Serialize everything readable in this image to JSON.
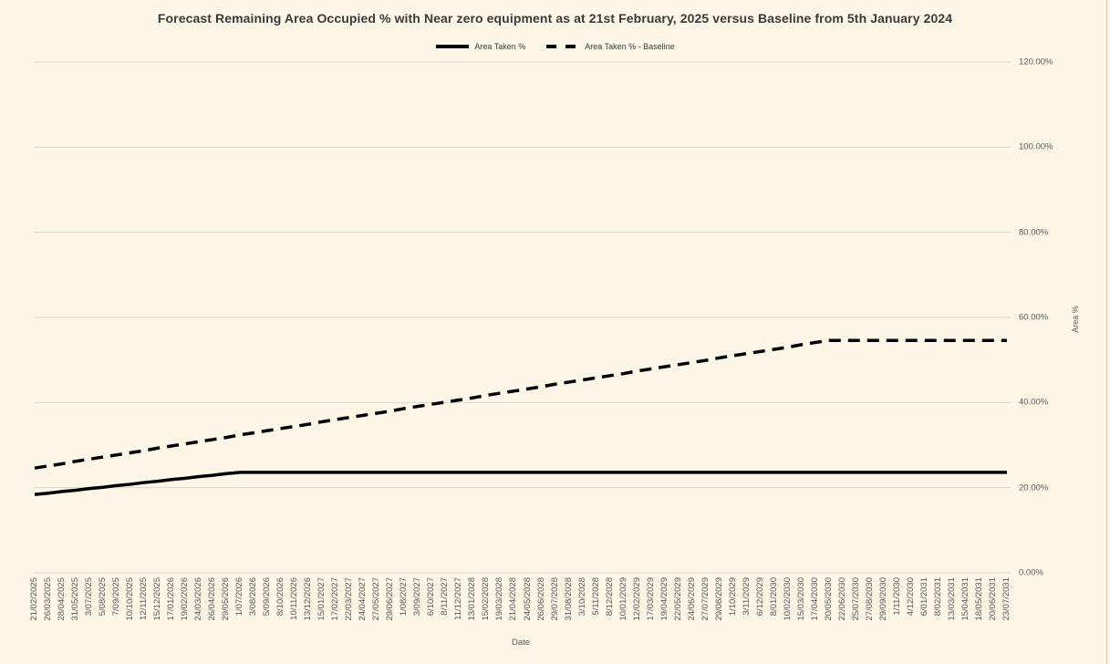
{
  "title": "Forecast Remaining Area Occupied % with Near zero equipment as at 21st February, 2025 versus Baseline from 5th January 2024",
  "legend": [
    {
      "label": "Area Taken %"
    },
    {
      "label": "Area Taken % - Baseline"
    }
  ],
  "axes": {
    "x_title": "Date",
    "y_title": "Area %",
    "y_ticks": [
      "0.00%",
      "20.00%",
      "40.00%",
      "60.00%",
      "80.00%",
      "100.00%",
      "120.00%"
    ]
  },
  "colors": {
    "background": "#fdf6e7",
    "line": "#000000",
    "gridline": "#dbd8cf",
    "tick_text": "#5a5856",
    "title_text": "#3a3a3a",
    "right_border": "#c7c5bf"
  },
  "chart_data": {
    "type": "line",
    "title": "Forecast Remaining Area Occupied % with Near zero equipment as at 21st February, 2025 versus Baseline from 5th January 2024",
    "xlabel": "Date",
    "ylabel": "Area %",
    "ylim": [
      0,
      120
    ],
    "grid": "horizontal",
    "legend_position": "top",
    "categories": [
      "21/02/2025",
      "26/03/2025",
      "28/04/2025",
      "31/05/2025",
      "3/07/2025",
      "5/08/2025",
      "7/09/2025",
      "10/10/2025",
      "12/11/2025",
      "15/12/2025",
      "17/01/2026",
      "19/02/2026",
      "24/03/2026",
      "26/04/2026",
      "29/05/2026",
      "1/07/2026",
      "3/08/2026",
      "5/09/2026",
      "8/10/2026",
      "10/11/2026",
      "13/12/2026",
      "15/01/2027",
      "17/02/2027",
      "22/03/2027",
      "24/04/2027",
      "27/05/2027",
      "29/06/2027",
      "1/08/2027",
      "3/09/2027",
      "6/10/2027",
      "8/11/2027",
      "11/12/2027",
      "13/01/2028",
      "15/02/2028",
      "19/03/2028",
      "21/04/2028",
      "24/05/2028",
      "26/06/2028",
      "29/07/2028",
      "31/08/2028",
      "3/10/2028",
      "5/11/2028",
      "8/12/2028",
      "10/01/2029",
      "12/02/2029",
      "17/03/2029",
      "19/04/2029",
      "22/05/2029",
      "24/06/2029",
      "27/07/2029",
      "29/08/2029",
      "1/10/2029",
      "3/11/2029",
      "6/12/2029",
      "8/01/2030",
      "10/02/2030",
      "15/03/2030",
      "17/04/2030",
      "20/05/2030",
      "22/06/2030",
      "25/07/2030",
      "27/08/2030",
      "29/09/2030",
      "1/11/2030",
      "4/12/2030",
      "6/01/2031",
      "8/02/2031",
      "13/03/2031",
      "15/04/2031",
      "18/05/2031",
      "20/06/2031",
      "23/07/2031"
    ],
    "series": [
      {
        "name": "Area Taken %",
        "style": "solid",
        "values": [
          18.4,
          18.7,
          19.1,
          19.4,
          19.8,
          20.1,
          20.5,
          20.8,
          21.2,
          21.5,
          21.9,
          22.2,
          22.6,
          22.9,
          23.3,
          23.6,
          23.6,
          23.6,
          23.6,
          23.6,
          23.6,
          23.6,
          23.6,
          23.6,
          23.6,
          23.6,
          23.6,
          23.6,
          23.6,
          23.6,
          23.6,
          23.6,
          23.6,
          23.6,
          23.6,
          23.6,
          23.6,
          23.6,
          23.6,
          23.6,
          23.6,
          23.6,
          23.6,
          23.6,
          23.6,
          23.6,
          23.6,
          23.6,
          23.6,
          23.6,
          23.6,
          23.6,
          23.6,
          23.6,
          23.6,
          23.6,
          23.6,
          23.6,
          23.6,
          23.6,
          23.6,
          23.6,
          23.6,
          23.6,
          23.6,
          23.6,
          23.6,
          23.6,
          23.6,
          23.6,
          23.6,
          23.6
        ]
      },
      {
        "name": "Area Taken % - Baseline",
        "style": "dashed",
        "values": [
          24.6,
          25.1,
          25.6,
          26.2,
          26.7,
          27.2,
          27.7,
          28.2,
          28.7,
          29.3,
          29.8,
          30.3,
          30.8,
          31.3,
          31.8,
          32.4,
          32.9,
          33.4,
          33.9,
          34.4,
          34.9,
          35.5,
          36.0,
          36.5,
          37.0,
          37.5,
          38.0,
          38.6,
          39.1,
          39.6,
          40.1,
          40.6,
          41.1,
          41.7,
          42.2,
          42.7,
          43.2,
          43.7,
          44.3,
          44.8,
          45.3,
          45.8,
          46.3,
          46.8,
          47.4,
          47.9,
          48.4,
          48.9,
          49.4,
          49.9,
          50.5,
          51.0,
          51.5,
          52.0,
          52.5,
          53.0,
          53.6,
          54.1,
          54.6,
          54.6,
          54.6,
          54.6,
          54.6,
          54.6,
          54.6,
          54.6,
          54.6,
          54.6,
          54.6,
          54.6,
          54.6,
          54.6
        ]
      }
    ]
  }
}
